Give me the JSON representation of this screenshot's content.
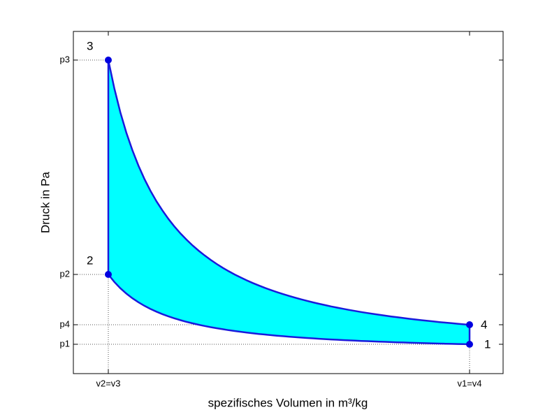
{
  "axes": {
    "x_label": "spezifisches Volumen in m³/kg",
    "y_label": "Druck in Pa",
    "x_ticks": [
      "v2=v3",
      "v1=v4"
    ],
    "y_ticks": [
      "p3",
      "p2",
      "p4",
      "p1"
    ]
  },
  "points": [
    "1",
    "2",
    "3",
    "4"
  ]
}
